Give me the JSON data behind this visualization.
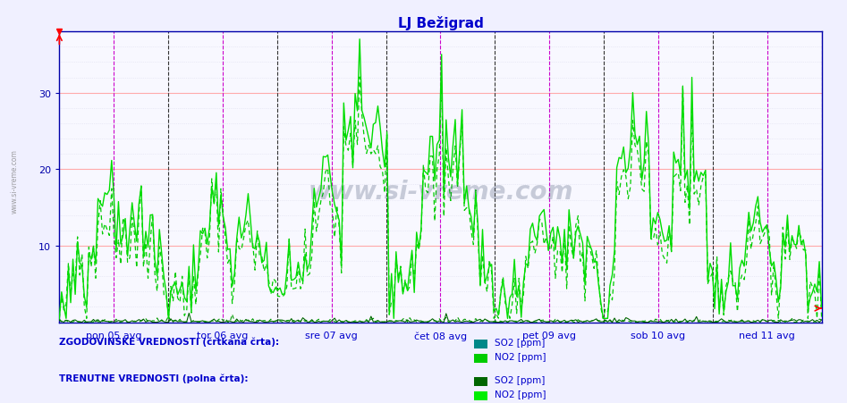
{
  "title": "LJ Bežigrad",
  "title_color": "#0000cc",
  "bg_color": "#f0f0ff",
  "plot_bg_color": "#f8f8ff",
  "xlabel_color": "#0000cc",
  "ylabel_max": 38,
  "yticks": [
    10,
    20,
    30
  ],
  "day_labels": [
    "pon 05 avg",
    "tor 06 avg",
    "sre 07 avg",
    "čet 08 avg",
    "pet 09 avg",
    "sob 10 avg",
    "ned 11 avg"
  ],
  "n_points": 336,
  "watermark": "www.si-vreme.com",
  "legend_hist_label": "ZGODOVINSKE VREDNOSTI (črtkana črta):",
  "legend_curr_label": "TRENUTNE VREDNOSTI (polna črta):",
  "no2_hist_color": "#00cc00",
  "no2_curr_color": "#00dd00",
  "so2_hist_color": "#009900",
  "so2_curr_color": "#006600",
  "left_label": "www.si-vreme.com",
  "vline_noon_color": "#cc00cc",
  "vline_midnight_color": "#333333",
  "hgrid_major_color": "#ffaaaa",
  "hgrid_minor_color": "#ddddee",
  "vgrid_color": "#ccccdd",
  "so2_legend_color_hist": "#008888",
  "no2_legend_color_hist": "#00cc00",
  "so2_legend_color_curr": "#006600",
  "no2_legend_color_curr": "#00ee00",
  "spine_color": "#0000aa",
  "tick_color": "#0000aa"
}
